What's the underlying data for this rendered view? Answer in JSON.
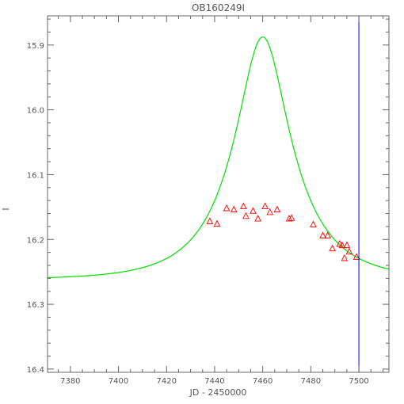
{
  "chart_data": {
    "type": "scatter",
    "title": "OB160249I",
    "xlabel": "JD - 2450000",
    "ylabel": "I",
    "xlim": [
      7370.5,
      7512.5
    ],
    "ylim": [
      16.405,
      15.855
    ],
    "y_inverted": true,
    "grid": false,
    "x_ticks": [
      7380,
      7400,
      7420,
      7440,
      7460,
      7480,
      7500
    ],
    "y_ticks": [
      15.9,
      16.0,
      16.1,
      16.2,
      16.3,
      16.4
    ],
    "x_tick_labels": [
      "7380",
      "7400",
      "7420",
      "7440",
      "7460",
      "7480",
      "7500"
    ],
    "y_tick_labels": [
      "15.9",
      "16.0",
      "16.1",
      "16.2",
      "16.3",
      "16.4"
    ],
    "colors": {
      "observed": "#ff0000",
      "model": "#00e000",
      "marker_line": "#0000ff",
      "frame": "#666666"
    },
    "series": [
      {
        "type": "scatter",
        "marker": "triangle",
        "color": "#ff0000",
        "points": [
          [
            7438,
            16.172
          ],
          [
            7441,
            16.176
          ],
          [
            7445,
            16.152
          ],
          [
            7448,
            16.154
          ],
          [
            7452,
            16.149
          ],
          [
            7453,
            16.164
          ],
          [
            7456,
            16.156
          ],
          [
            7458,
            16.168
          ],
          [
            7461,
            16.149
          ],
          [
            7463,
            16.158
          ],
          [
            7466,
            16.154
          ],
          [
            7471,
            16.168
          ],
          [
            7472,
            16.167
          ],
          [
            7481,
            16.177
          ],
          [
            7485,
            16.194
          ],
          [
            7487,
            16.194
          ],
          [
            7489,
            16.214
          ],
          [
            7492,
            16.207
          ],
          [
            7493,
            16.209
          ],
          [
            7494,
            16.229
          ],
          [
            7495,
            16.209
          ],
          [
            7496,
            16.219
          ],
          [
            7499,
            16.227
          ]
        ]
      },
      {
        "type": "line",
        "color": "#00e000",
        "model": {
          "t0": 7460,
          "tE": 26.7,
          "u0": 0.4,
          "i_base": 16.262,
          "f_s": 0.25
        }
      }
    ],
    "vertical_lines": [
      {
        "x": 7500,
        "color": "#0000ff"
      }
    ]
  }
}
